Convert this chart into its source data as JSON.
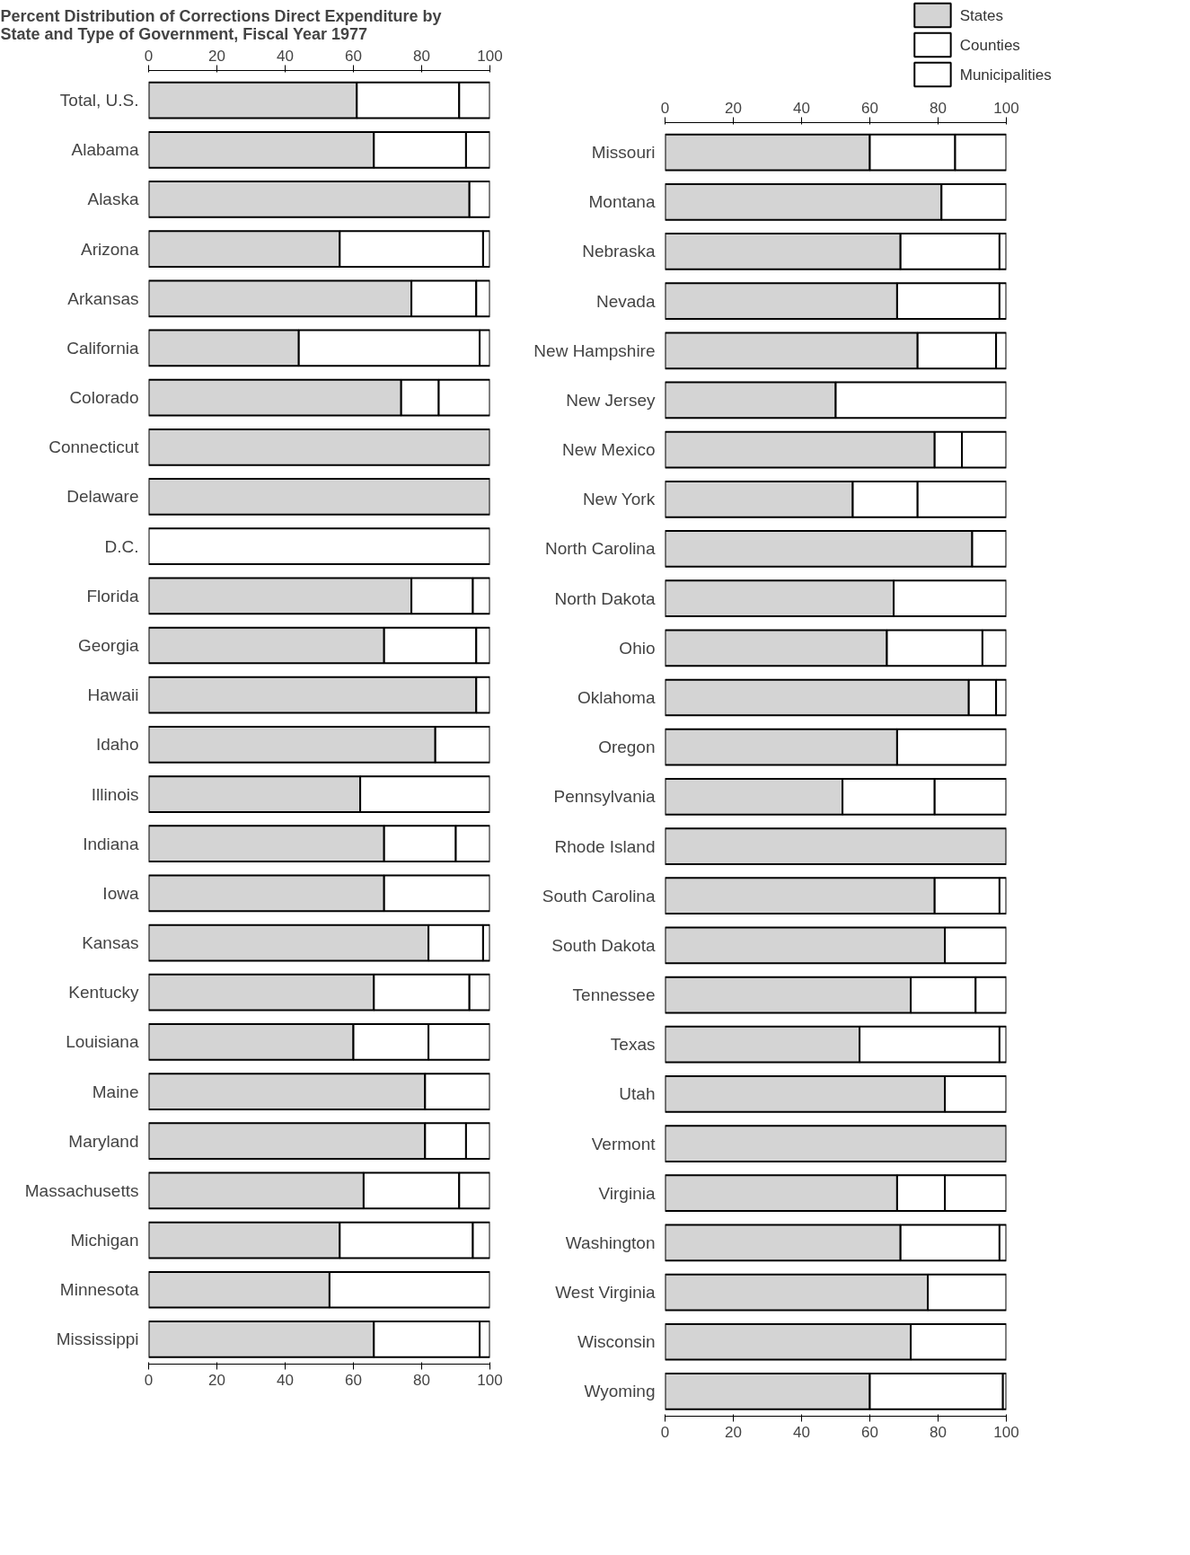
{
  "chart_data": [
    {
      "type": "bar",
      "orientation": "horizontal",
      "stacked": true,
      "title": "Percent Distribution of Corrections Direct Expenditure by State and Type of Government, Fiscal Year 1977",
      "categories": [
        "Total, U.S.",
        "Alabama",
        "Alaska",
        "Arizona",
        "Arkansas",
        "California",
        "Colorado",
        "Connecticut",
        "Delaware",
        "D.C.",
        "Florida",
        "Georgia",
        "Hawaii",
        "Idaho",
        "Illinois",
        "Indiana",
        "Iowa",
        "Kansas",
        "Kentucky",
        "Louisiana",
        "Maine",
        "Maryland",
        "Massachusetts",
        "Michigan",
        "Minnesota",
        "Mississippi"
      ],
      "series": [
        {
          "color": "#d4d4d4",
          "values": [
            61,
            66,
            94,
            56,
            77,
            44,
            74,
            100,
            100,
            null,
            77,
            69,
            96,
            84,
            62,
            69,
            69,
            82,
            66,
            60,
            81,
            81,
            63,
            56,
            53,
            66
          ]
        },
        {
          "color": "#ffffff",
          "values": [
            30,
            27,
            null,
            42,
            19,
            53,
            11,
            null,
            null,
            null,
            18,
            27,
            null,
            16,
            38,
            21,
            31,
            16,
            28,
            22,
            19,
            12,
            28,
            39,
            47,
            31
          ]
        },
        {
          "color": "#ffffff",
          "values": [
            9,
            7,
            6,
            2,
            4,
            3,
            15,
            null,
            null,
            100,
            5,
            4,
            4,
            null,
            null,
            10,
            null,
            2,
            6,
            18,
            null,
            7,
            9,
            5,
            null,
            3
          ]
        }
      ],
      "xlim": [
        0,
        100
      ],
      "xticks": [
        0,
        20,
        40,
        60,
        80,
        100
      ],
      "x2lim": [
        0,
        100
      ],
      "x2ticks": [
        0,
        20,
        40,
        60,
        80,
        100
      ],
      "grid": false
    },
    {
      "type": "bar",
      "orientation": "horizontal",
      "stacked": true,
      "categories": [
        "Missouri",
        "Montana",
        "Nebraska",
        "Nevada",
        "New Hampshire",
        "New Jersey",
        "New Mexico",
        "New York",
        "North Carolina",
        "North Dakota",
        "Ohio",
        "Oklahoma",
        "Oregon",
        "Pennsylvania",
        "Rhode Island",
        "South Carolina",
        "South Dakota",
        "Tennessee",
        "Texas",
        "Utah",
        "Vermont",
        "Virginia",
        "Washington",
        "West Virginia",
        "Wisconsin",
        "Wyoming"
      ],
      "series": [
        {
          "name": "States",
          "color": "#d4d4d4",
          "values": [
            60,
            81,
            69,
            68,
            74,
            50,
            79,
            55,
            90,
            67,
            65,
            89,
            68,
            52,
            100,
            79,
            82,
            72,
            57,
            82,
            100,
            68,
            69,
            77,
            72,
            60
          ]
        },
        {
          "name": "Counties",
          "color": "#ffffff",
          "values": [
            25,
            19,
            29,
            30,
            23,
            50,
            8,
            19,
            null,
            33,
            28,
            8,
            32,
            27,
            null,
            19,
            18,
            19,
            41,
            18,
            null,
            14,
            29,
            23,
            28,
            39
          ]
        },
        {
          "name": "Municipalities",
          "color": "#ffffff",
          "values": [
            15,
            null,
            2,
            2,
            3,
            null,
            13,
            26,
            10,
            null,
            7,
            3,
            null,
            21,
            null,
            2,
            null,
            9,
            2,
            null,
            null,
            18,
            2,
            null,
            null,
            1
          ]
        }
      ],
      "xlim": [
        0,
        100
      ],
      "xticks": [
        0,
        20,
        40,
        60,
        80,
        100
      ],
      "x2lim": [
        0,
        100
      ],
      "x2ticks": [
        0,
        20,
        40,
        60,
        80,
        100
      ],
      "grid": false,
      "legend": "top right"
    }
  ]
}
